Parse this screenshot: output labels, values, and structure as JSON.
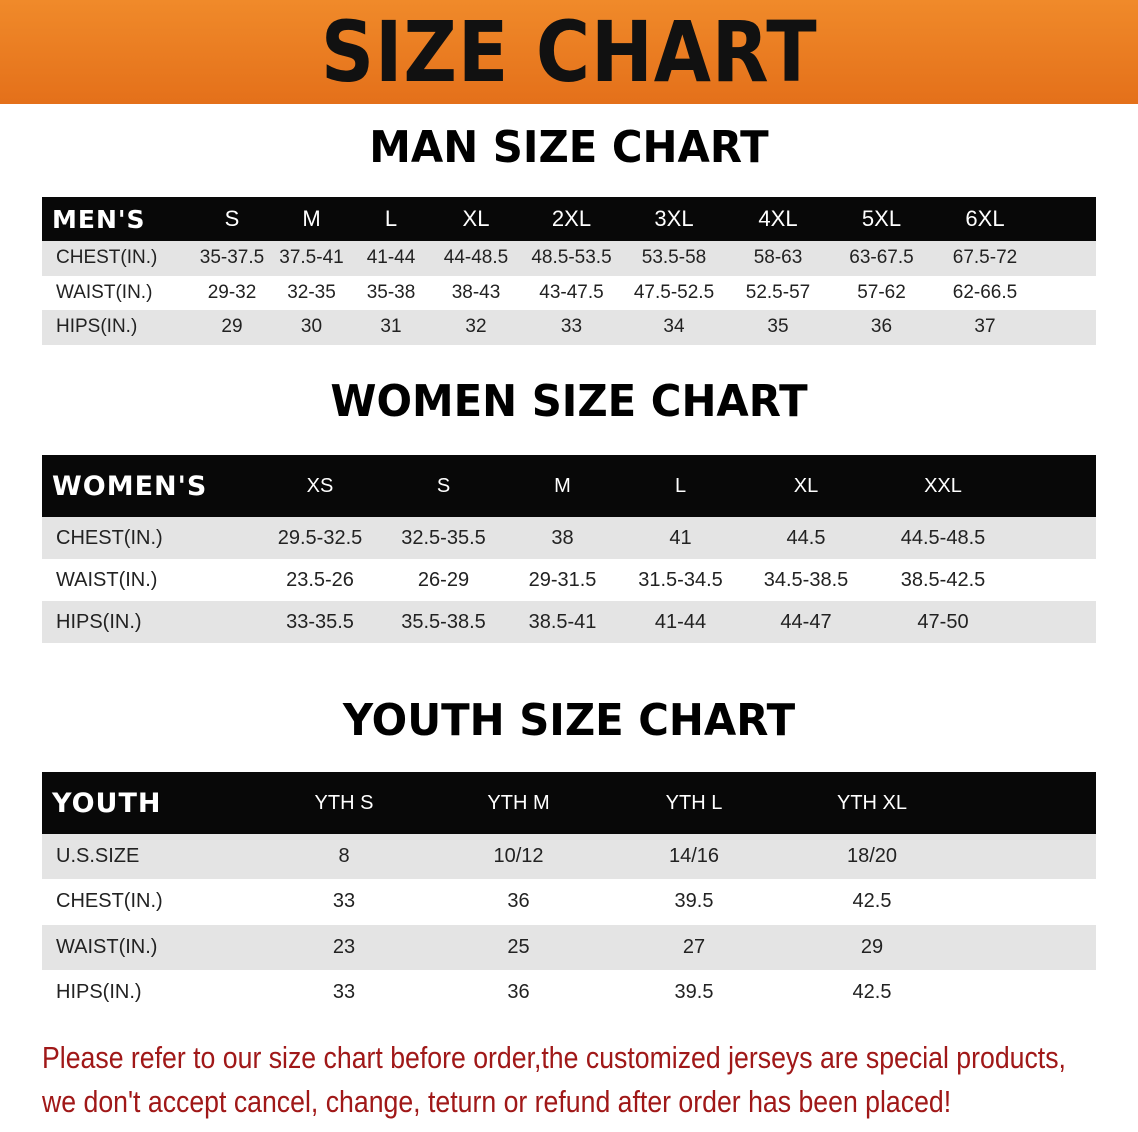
{
  "banner_title": "SIZE CHART",
  "colors": {
    "banner": "#e97a1f",
    "header_row": "#080808",
    "stripe": "#e4e4e4",
    "note": "#a01818"
  },
  "men": {
    "title": "MAN SIZE CHART",
    "header": [
      "MEN'S",
      "S",
      "M",
      "L",
      "XL",
      "2XL",
      "3XL",
      "4XL",
      "5XL",
      "6XL"
    ],
    "rows": [
      [
        "CHEST(IN.)",
        "35-37.5",
        "37.5-41",
        "41-44",
        "44-48.5",
        "48.5-53.5",
        "53.5-58",
        "58-63",
        "63-67.5",
        "67.5-72"
      ],
      [
        "WAIST(IN.)",
        "29-32",
        "32-35",
        "35-38",
        "38-43",
        "43-47.5",
        "47.5-52.5",
        "52.5-57",
        "57-62",
        "62-66.5"
      ],
      [
        "HIPS(IN.)",
        "29",
        "30",
        "31",
        "32",
        "33",
        "34",
        "35",
        "36",
        "37"
      ]
    ]
  },
  "women": {
    "title": "WOMEN SIZE CHART",
    "header": [
      "WOMEN'S",
      "XS",
      "S",
      "M",
      "L",
      "XL",
      "XXL"
    ],
    "rows": [
      [
        "CHEST(IN.)",
        "29.5-32.5",
        "32.5-35.5",
        "38",
        "41",
        "44.5",
        "44.5-48.5"
      ],
      [
        "WAIST(IN.)",
        "23.5-26",
        "26-29",
        "29-31.5",
        "31.5-34.5",
        "34.5-38.5",
        "38.5-42.5"
      ],
      [
        "HIPS(IN.)",
        "33-35.5",
        "35.5-38.5",
        "38.5-41",
        "41-44",
        "44-47",
        "47-50"
      ]
    ]
  },
  "youth": {
    "title": "YOUTH SIZE CHART",
    "header": [
      "YOUTH",
      "YTH S",
      "YTH M",
      "YTH L",
      "YTH XL"
    ],
    "rows": [
      [
        "U.S.SIZE",
        "8",
        "10/12",
        "14/16",
        "18/20"
      ],
      [
        "CHEST(IN.)",
        "33",
        "36",
        "39.5",
        "42.5"
      ],
      [
        "WAIST(IN.)",
        "23",
        "25",
        "27",
        "29"
      ],
      [
        "HIPS(IN.)",
        "33",
        "36",
        "39.5",
        "42.5"
      ]
    ]
  },
  "note": {
    "line1": "Please refer to our size chart before order,the customized jerseys are special products,",
    "line2": "we don't accept cancel, change, teturn or refund after order has been placed!"
  }
}
